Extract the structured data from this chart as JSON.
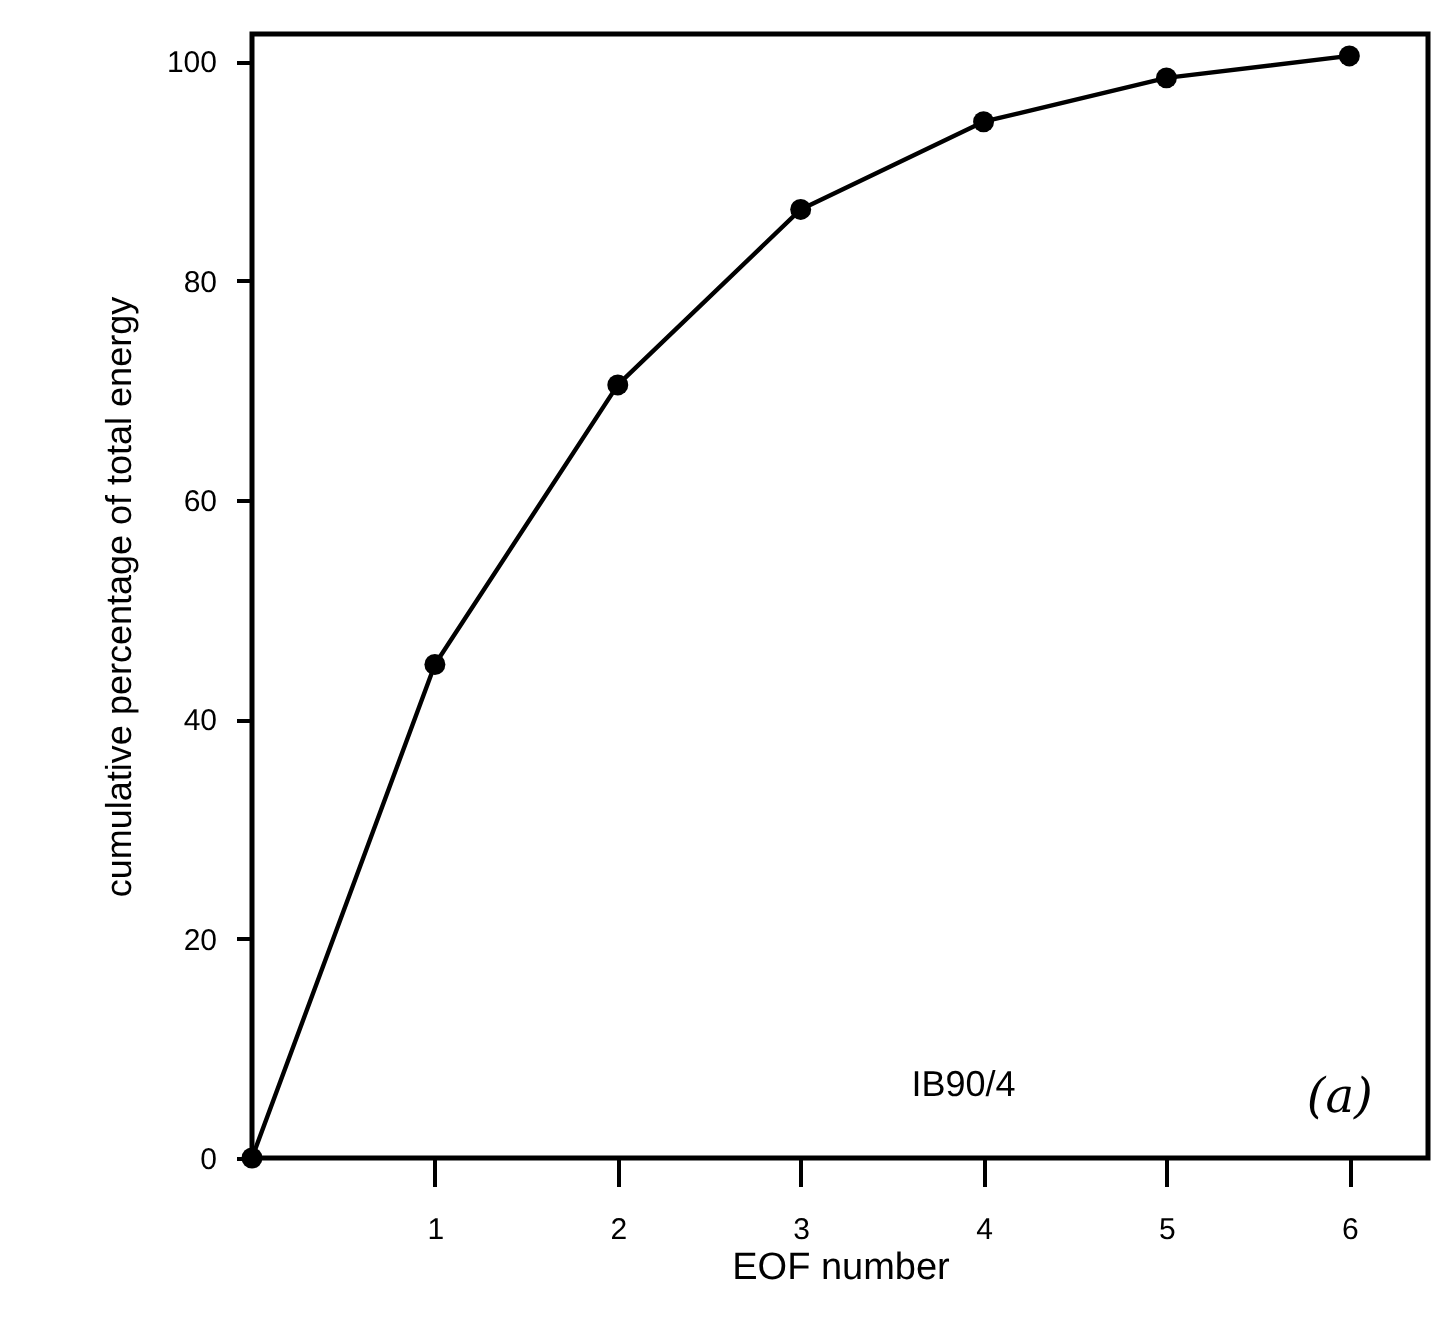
{
  "chart_data": {
    "type": "line",
    "xlabel": "EOF number",
    "ylabel": "cumulative percentage of total energy",
    "x": [
      0,
      1,
      2,
      3,
      4,
      5,
      6
    ],
    "series": [
      {
        "color": "#000000",
        "values": [
          0,
          45,
          70.5,
          86.5,
          94.5,
          98.5,
          100.5
        ]
      }
    ],
    "xlim": [
      0,
      6.43
    ],
    "xticks": [
      1,
      2,
      3,
      4,
      5,
      6
    ],
    "ylim": [
      0,
      102.5
    ],
    "yticks": [
      0,
      20,
      40,
      60,
      80,
      100
    ],
    "marker": "circle",
    "line_style": "solid",
    "grid": false,
    "annotations": [
      "IB90/4",
      "(a)"
    ]
  }
}
